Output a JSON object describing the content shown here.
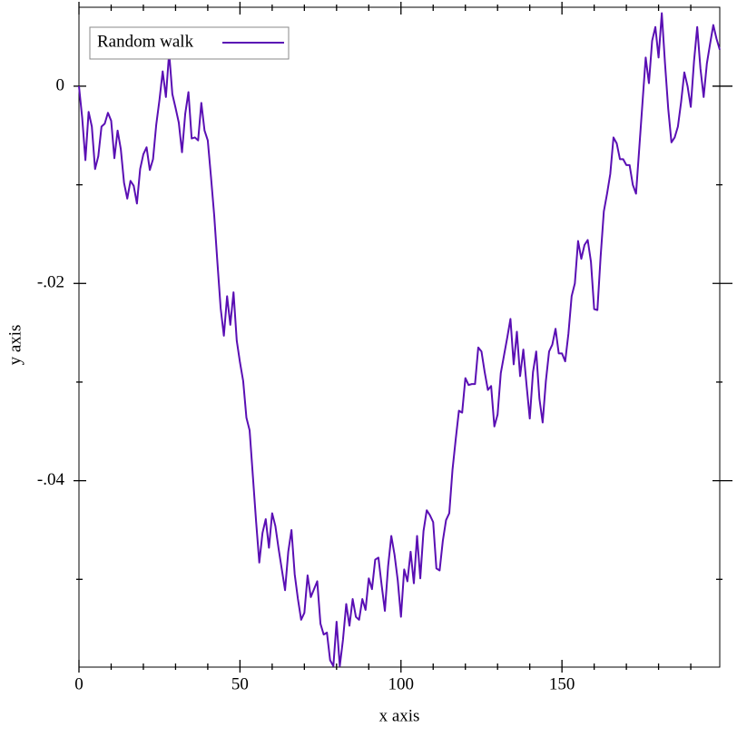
{
  "chart_data": {
    "type": "line",
    "x_label": "x axis",
    "y_label": "y axis",
    "legend": "top-left",
    "x": [
      0,
      1,
      2,
      3,
      4,
      5,
      6,
      7,
      8,
      9,
      10,
      11,
      12,
      13,
      14,
      15,
      16,
      17,
      18,
      19,
      20,
      21,
      22,
      23,
      24,
      25,
      26,
      27,
      28,
      29,
      30,
      31,
      32,
      33,
      34,
      35,
      36,
      37,
      38,
      39,
      40,
      41,
      42,
      43,
      44,
      45,
      46,
      47,
      48,
      49,
      50,
      51,
      52,
      53,
      54,
      55,
      56,
      57,
      58,
      59,
      60,
      61,
      62,
      63,
      64,
      65,
      66,
      67,
      68,
      69,
      70,
      71,
      72,
      73,
      74,
      75,
      76,
      77,
      78,
      79,
      80,
      81,
      82,
      83,
      84,
      85,
      86,
      87,
      88,
      89,
      90,
      91,
      92,
      93,
      94,
      95,
      96,
      97,
      98,
      99,
      100,
      101,
      102,
      103,
      104,
      105,
      106,
      107,
      108,
      109,
      110,
      111,
      112,
      113,
      114,
      115,
      116,
      117,
      118,
      119,
      120,
      121,
      122,
      123,
      124,
      125,
      126,
      127,
      128,
      129,
      130,
      131,
      132,
      133,
      134,
      135,
      136,
      137,
      138,
      139,
      140,
      141,
      142,
      143,
      144,
      145,
      146,
      147,
      148,
      149,
      150,
      151,
      152,
      153,
      154,
      155,
      156,
      157,
      158,
      159,
      160,
      161,
      162,
      163,
      164,
      165,
      166,
      167,
      168,
      169,
      170,
      171,
      172,
      173,
      174,
      175,
      176,
      177,
      178,
      179,
      180,
      181,
      182,
      183,
      184,
      185,
      186,
      187,
      188,
      189,
      190,
      191,
      192,
      193,
      194,
      195,
      196,
      197,
      198,
      199
    ],
    "series": [
      {
        "name": "Random walk",
        "color": "#5a0fb4",
        "values": [
          0,
          -0.0032,
          -0.0075,
          -0.0026,
          -0.0041,
          -0.0084,
          -0.0071,
          -0.0041,
          -0.0038,
          -0.0027,
          -0.0035,
          -0.0073,
          -0.0045,
          -0.0064,
          -0.0098,
          -0.0114,
          -0.0096,
          -0.0101,
          -0.0119,
          -0.0084,
          -0.0069,
          -0.0062,
          -0.0085,
          -0.0074,
          -0.0039,
          -0.0014,
          0.0015,
          -0.0011,
          0.0034,
          -0.0008,
          -0.0022,
          -0.0037,
          -0.0067,
          -0.0028,
          -0.0006,
          -0.0053,
          -0.0052,
          -0.0055,
          -0.0017,
          -0.0045,
          -0.0055,
          -0.0092,
          -0.0131,
          -0.0179,
          -0.0225,
          -0.0253,
          -0.0213,
          -0.0242,
          -0.0209,
          -0.0258,
          -0.028,
          -0.0299,
          -0.0336,
          -0.0349,
          -0.0395,
          -0.0441,
          -0.0483,
          -0.0453,
          -0.0439,
          -0.0468,
          -0.0433,
          -0.0446,
          -0.0469,
          -0.049,
          -0.0511,
          -0.0472,
          -0.045,
          -0.0495,
          -0.052,
          -0.0541,
          -0.0534,
          -0.0496,
          -0.0518,
          -0.051,
          -0.0502,
          -0.0545,
          -0.0556,
          -0.0554,
          -0.0582,
          -0.0588,
          -0.0543,
          -0.0588,
          -0.0561,
          -0.0525,
          -0.0547,
          -0.052,
          -0.0538,
          -0.0541,
          -0.052,
          -0.0531,
          -0.0499,
          -0.051,
          -0.048,
          -0.0478,
          -0.0506,
          -0.0532,
          -0.0487,
          -0.0456,
          -0.0475,
          -0.0501,
          -0.0538,
          -0.049,
          -0.0502,
          -0.0472,
          -0.0504,
          -0.0456,
          -0.0499,
          -0.0451,
          -0.043,
          -0.0435,
          -0.0442,
          -0.0489,
          -0.0491,
          -0.0461,
          -0.044,
          -0.0433,
          -0.0389,
          -0.0358,
          -0.0329,
          -0.0331,
          -0.0296,
          -0.0303,
          -0.0302,
          -0.0302,
          -0.0265,
          -0.0269,
          -0.029,
          -0.0308,
          -0.0304,
          -0.0345,
          -0.0333,
          -0.0291,
          -0.0273,
          -0.0255,
          -0.0236,
          -0.0282,
          -0.0249,
          -0.0294,
          -0.0267,
          -0.0303,
          -0.0337,
          -0.029,
          -0.0269,
          -0.0317,
          -0.0341,
          -0.0299,
          -0.0269,
          -0.0262,
          -0.0246,
          -0.0271,
          -0.0271,
          -0.0279,
          -0.0251,
          -0.0213,
          -0.02,
          -0.0157,
          -0.0175,
          -0.0161,
          -0.0156,
          -0.0178,
          -0.0226,
          -0.0227,
          -0.0173,
          -0.0127,
          -0.0109,
          -0.0089,
          -0.0052,
          -0.0058,
          -0.0074,
          -0.0074,
          -0.008,
          -0.008,
          -0.01,
          -0.0109,
          -0.0063,
          -0.0017,
          0.0029,
          0.0003,
          0.0046,
          0.006,
          0.0029,
          0.0074,
          0.0023,
          -0.0023,
          -0.0057,
          -0.0052,
          -0.0041,
          -0.0016,
          0.0014,
          0,
          -0.0021,
          0.0025,
          0.006,
          0.0018,
          -0.0011,
          0.0023,
          0.0043,
          0.0062,
          0.0048,
          0.0037
        ]
      }
    ],
    "xlim": [
      0,
      199
    ],
    "ylim": [
      -0.0589,
      0.008
    ],
    "xticks": [
      0,
      50,
      100,
      150
    ],
    "xminorticks": [
      10,
      20,
      30,
      40,
      60,
      70,
      80,
      90,
      110,
      120,
      130,
      140,
      160,
      170,
      180,
      190
    ],
    "yticks": [
      0,
      {
        "value": -0.02,
        "label": "-.02"
      },
      {
        "value": -0.04,
        "label": "-.04"
      }
    ],
    "yminorticks": [
      -0.01,
      -0.03,
      -0.05
    ]
  }
}
